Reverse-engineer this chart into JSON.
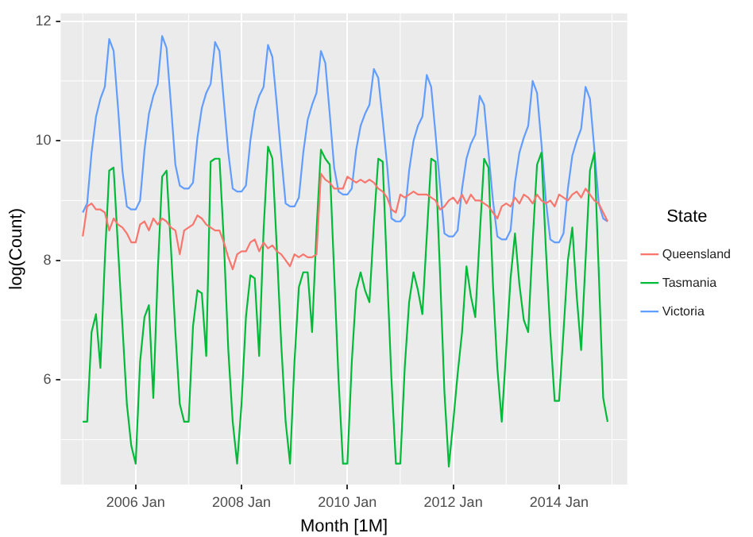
{
  "chart_data": {
    "type": "line",
    "xlabel": "Month [1M]",
    "ylabel": "log(Count)",
    "legend_title": "State",
    "legend": "right",
    "grid": true,
    "marker": "none",
    "xlim": [
      "2004-08-01",
      "2015-04-15"
    ],
    "ylim": [
      4.25,
      12.13
    ],
    "xticks": [
      {
        "value": "2006-01",
        "label": "2006 Jan"
      },
      {
        "value": "2008-01",
        "label": "2008 Jan"
      },
      {
        "value": "2010-01",
        "label": "2010 Jan"
      },
      {
        "value": "2012-01",
        "label": "2012 Jan"
      },
      {
        "value": "2014-01",
        "label": "2014 Jan"
      }
    ],
    "yticks": [
      6,
      8,
      10,
      12
    ],
    "x": [
      "2005-01",
      "2005-02",
      "2005-03",
      "2005-04",
      "2005-05",
      "2005-06",
      "2005-07",
      "2005-08",
      "2005-09",
      "2005-10",
      "2005-11",
      "2005-12",
      "2006-01",
      "2006-02",
      "2006-03",
      "2006-04",
      "2006-05",
      "2006-06",
      "2006-07",
      "2006-08",
      "2006-09",
      "2006-10",
      "2006-11",
      "2006-12",
      "2007-01",
      "2007-02",
      "2007-03",
      "2007-04",
      "2007-05",
      "2007-06",
      "2007-07",
      "2007-08",
      "2007-09",
      "2007-10",
      "2007-11",
      "2007-12",
      "2008-01",
      "2008-02",
      "2008-03",
      "2008-04",
      "2008-05",
      "2008-06",
      "2008-07",
      "2008-08",
      "2008-09",
      "2008-10",
      "2008-11",
      "2008-12",
      "2009-01",
      "2009-02",
      "2009-03",
      "2009-04",
      "2009-05",
      "2009-06",
      "2009-07",
      "2009-08",
      "2009-09",
      "2009-10",
      "2009-11",
      "2009-12",
      "2010-01",
      "2010-02",
      "2010-03",
      "2010-04",
      "2010-05",
      "2010-06",
      "2010-07",
      "2010-08",
      "2010-09",
      "2010-10",
      "2010-11",
      "2010-12",
      "2011-01",
      "2011-02",
      "2011-03",
      "2011-04",
      "2011-05",
      "2011-06",
      "2011-07",
      "2011-08",
      "2011-09",
      "2011-10",
      "2011-11",
      "2011-12",
      "2012-01",
      "2012-02",
      "2012-03",
      "2012-04",
      "2012-05",
      "2012-06",
      "2012-07",
      "2012-08",
      "2012-09",
      "2012-10",
      "2012-11",
      "2012-12",
      "2013-01",
      "2013-02",
      "2013-03",
      "2013-04",
      "2013-05",
      "2013-06",
      "2013-07",
      "2013-08",
      "2013-09",
      "2013-10",
      "2013-11",
      "2013-12",
      "2014-01",
      "2014-02",
      "2014-03",
      "2014-04",
      "2014-05",
      "2014-06",
      "2014-07",
      "2014-08",
      "2014-09",
      "2014-10",
      "2014-11",
      "2014-12"
    ],
    "series": [
      {
        "name": "Queensland",
        "color": "#f8766d",
        "values": [
          8.4,
          8.9,
          8.95,
          8.85,
          8.85,
          8.8,
          8.5,
          8.7,
          8.6,
          8.55,
          8.45,
          8.3,
          8.3,
          8.6,
          8.65,
          8.5,
          8.7,
          8.6,
          8.7,
          8.65,
          8.55,
          8.5,
          8.1,
          8.5,
          8.55,
          8.6,
          8.75,
          8.7,
          8.6,
          8.55,
          8.5,
          8.5,
          8.3,
          8.05,
          7.85,
          8.1,
          8.15,
          8.15,
          8.3,
          8.35,
          8.15,
          8.3,
          8.2,
          8.25,
          8.15,
          8.1,
          8.0,
          7.9,
          8.1,
          8.05,
          8.1,
          8.05,
          8.05,
          8.1,
          9.45,
          9.35,
          9.3,
          9.2,
          9.2,
          9.2,
          9.4,
          9.35,
          9.3,
          9.35,
          9.3,
          9.35,
          9.3,
          9.2,
          9.15,
          9.05,
          8.85,
          8.8,
          9.1,
          9.05,
          9.1,
          9.15,
          9.1,
          9.1,
          9.1,
          9.05,
          9.0,
          8.85,
          8.9,
          9.0,
          9.05,
          8.95,
          9.1,
          8.95,
          9.1,
          9.0,
          9.0,
          8.95,
          8.9,
          8.8,
          8.7,
          8.9,
          8.95,
          8.9,
          9.05,
          8.95,
          9.1,
          9.05,
          8.95,
          9.1,
          9.0,
          8.95,
          9.0,
          8.9,
          9.1,
          9.05,
          9.0,
          9.1,
          9.15,
          9.05,
          9.2,
          9.1,
          9.0,
          8.95,
          8.8,
          8.65
        ]
      },
      {
        "name": "Tasmania",
        "color": "#00ba38",
        "values": [
          5.3,
          5.3,
          6.8,
          7.1,
          6.2,
          8.0,
          9.5,
          9.55,
          8.2,
          6.9,
          5.6,
          4.9,
          4.6,
          6.3,
          7.05,
          7.25,
          5.7,
          7.8,
          9.4,
          9.5,
          8.2,
          6.8,
          5.6,
          5.3,
          5.3,
          6.9,
          7.5,
          7.45,
          6.4,
          9.65,
          9.7,
          9.7,
          8.3,
          6.5,
          5.3,
          4.6,
          5.6,
          7.05,
          7.75,
          7.7,
          6.4,
          8.5,
          9.9,
          9.7,
          8.2,
          6.6,
          5.3,
          4.6,
          6.3,
          7.55,
          7.8,
          7.8,
          6.8,
          8.5,
          9.85,
          9.7,
          9.6,
          7.8,
          6.0,
          4.6,
          4.6,
          6.3,
          7.5,
          7.8,
          7.5,
          7.3,
          8.6,
          9.7,
          9.65,
          7.8,
          6.0,
          4.6,
          4.6,
          6.2,
          7.3,
          7.8,
          7.5,
          7.1,
          8.4,
          9.7,
          9.65,
          7.8,
          5.8,
          4.55,
          5.3,
          6.1,
          6.8,
          7.9,
          7.4,
          7.05,
          8.4,
          9.7,
          9.55,
          7.6,
          6.2,
          5.3,
          6.5,
          7.7,
          8.45,
          7.6,
          7.0,
          6.8,
          8.3,
          9.6,
          9.8,
          8.2,
          6.8,
          5.65,
          5.65,
          6.8,
          8.0,
          8.55,
          7.4,
          6.5,
          8.0,
          9.5,
          9.8,
          7.8,
          5.7,
          5.3
        ]
      },
      {
        "name": "Victoria",
        "color": "#619cff",
        "values": [
          8.8,
          8.95,
          9.8,
          10.4,
          10.7,
          10.9,
          11.7,
          11.5,
          10.55,
          9.5,
          8.9,
          8.85,
          8.85,
          9.0,
          9.85,
          10.45,
          10.75,
          10.95,
          11.75,
          11.55,
          10.6,
          9.6,
          9.25,
          9.2,
          9.2,
          9.3,
          10.05,
          10.55,
          10.8,
          10.95,
          11.65,
          11.5,
          10.65,
          9.8,
          9.2,
          9.15,
          9.15,
          9.25,
          10.0,
          10.5,
          10.75,
          10.9,
          11.6,
          11.4,
          10.6,
          9.75,
          8.95,
          8.9,
          8.9,
          9.05,
          9.8,
          10.35,
          10.6,
          10.8,
          11.5,
          11.3,
          10.45,
          9.55,
          9.15,
          9.1,
          9.1,
          9.2,
          9.85,
          10.25,
          10.45,
          10.6,
          11.2,
          11.05,
          10.35,
          9.6,
          8.7,
          8.65,
          8.65,
          8.75,
          9.5,
          10.0,
          10.25,
          10.4,
          11.1,
          10.9,
          10.1,
          9.25,
          8.45,
          8.4,
          8.4,
          8.5,
          9.2,
          9.7,
          9.95,
          10.1,
          10.75,
          10.6,
          9.8,
          9.0,
          8.4,
          8.35,
          8.35,
          8.5,
          9.3,
          9.8,
          10.05,
          10.25,
          11.0,
          10.8,
          9.95,
          9.0,
          8.35,
          8.3,
          8.3,
          8.45,
          9.2,
          9.75,
          10.0,
          10.2,
          10.9,
          10.7,
          9.85,
          8.95,
          8.7,
          8.65
        ]
      }
    ]
  }
}
